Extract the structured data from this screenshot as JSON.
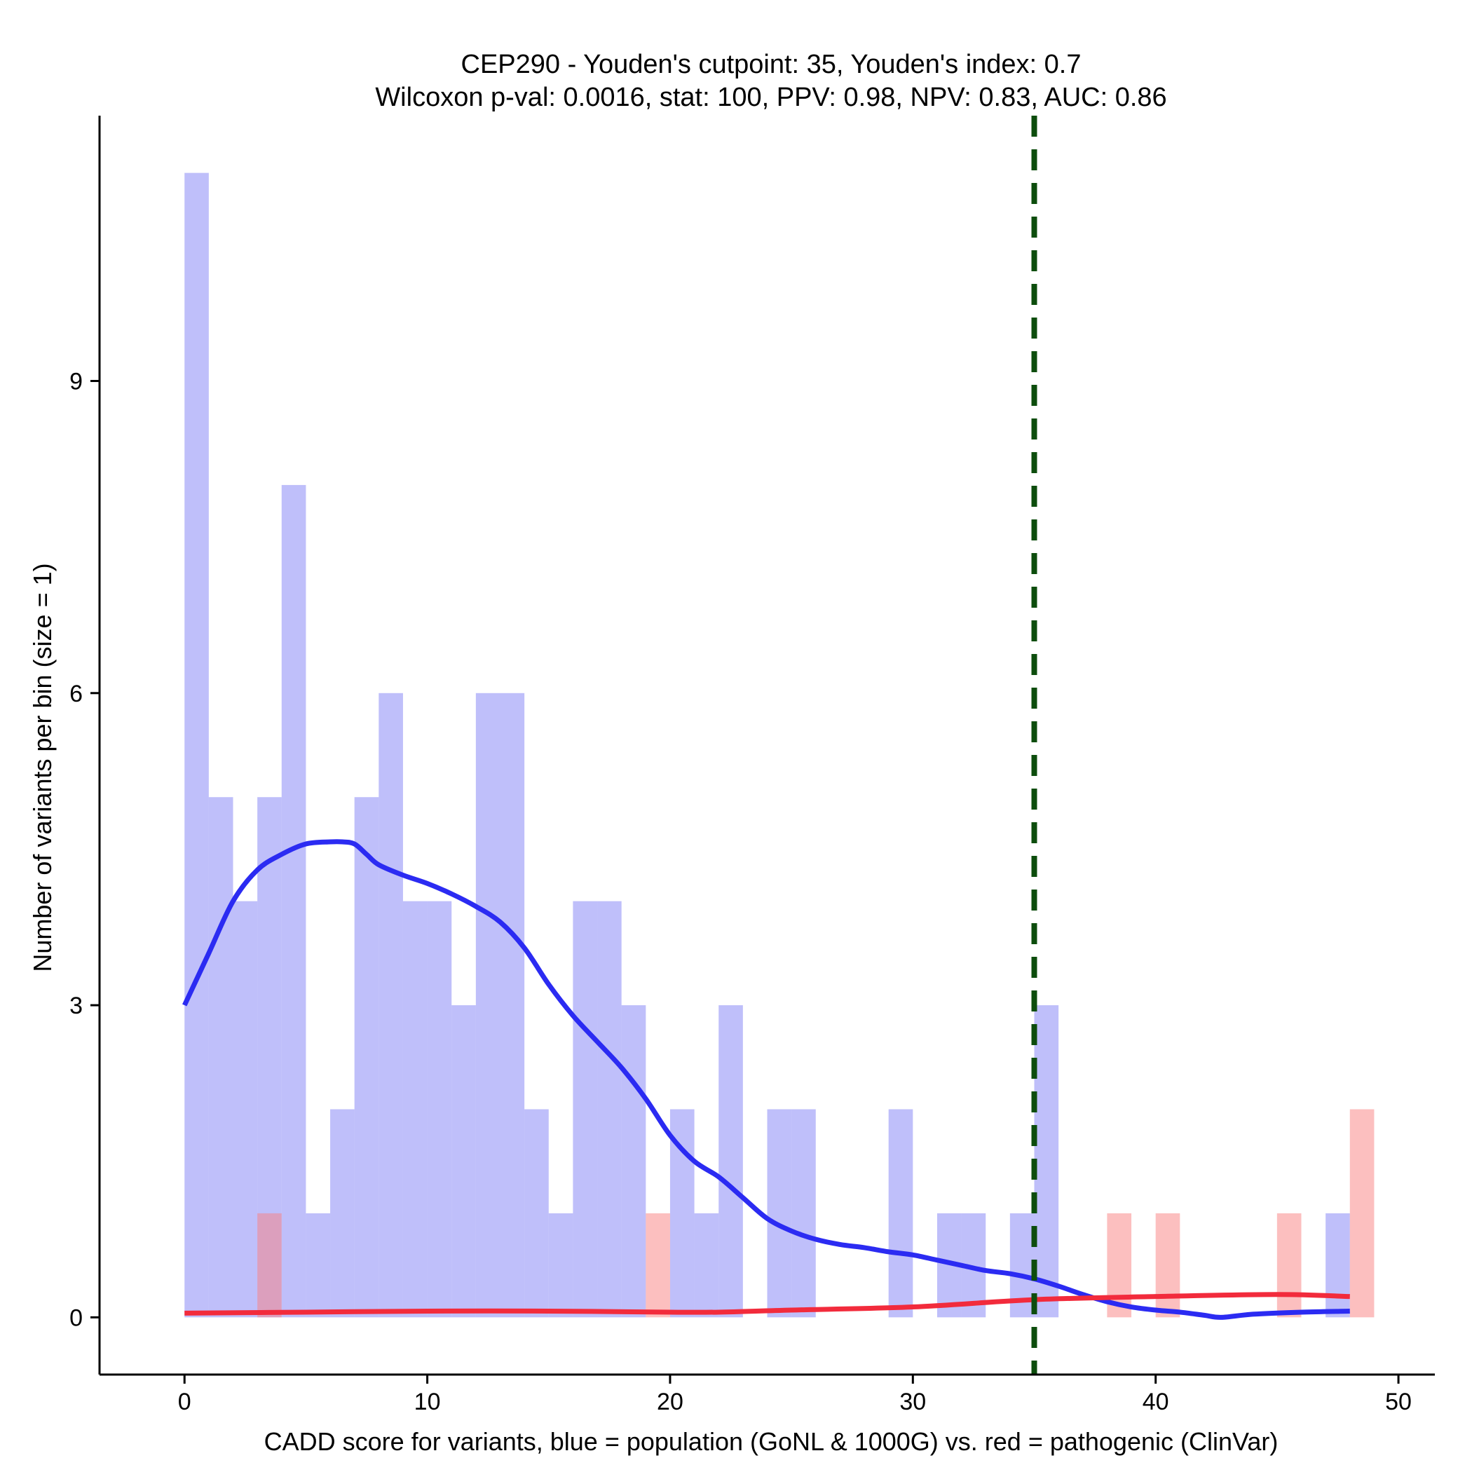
{
  "chart_data": {
    "type": "bar",
    "title": "CEP290 - Youden's cutpoint: 35, Youden's index: 0.7",
    "subtitle": "Wilcoxon p-val: 0.0016, stat: 100, PPV: 0.98, NPV: 0.83, AUC: 0.86",
    "xlabel": "CADD score for variants, blue = population (GoNL & 1000G) vs. red = pathogenic (ClinVar)",
    "ylabel": "Number of variants per bin (size = 1)",
    "xlim": [
      -3.5,
      51.5
    ],
    "ylim": [
      -0.55,
      11.55
    ],
    "x_ticks": [
      0,
      10,
      20,
      30,
      40,
      50
    ],
    "y_ticks": [
      0,
      3,
      6,
      9
    ],
    "bin_size": 1,
    "cutpoint": 35,
    "series": [
      {
        "name": "population (GoNL & 1000G)",
        "color": "#8080f5",
        "bins": [
          {
            "x0": 0,
            "count": 11
          },
          {
            "x0": 1,
            "count": 5
          },
          {
            "x0": 2,
            "count": 4
          },
          {
            "x0": 3,
            "count": 5
          },
          {
            "x0": 4,
            "count": 8
          },
          {
            "x0": 5,
            "count": 1
          },
          {
            "x0": 6,
            "count": 2
          },
          {
            "x0": 7,
            "count": 5
          },
          {
            "x0": 8,
            "count": 6
          },
          {
            "x0": 9,
            "count": 4
          },
          {
            "x0": 10,
            "count": 4
          },
          {
            "x0": 11,
            "count": 3
          },
          {
            "x0": 12,
            "count": 6
          },
          {
            "x0": 13,
            "count": 6
          },
          {
            "x0": 14,
            "count": 2
          },
          {
            "x0": 15,
            "count": 1
          },
          {
            "x0": 16,
            "count": 4
          },
          {
            "x0": 17,
            "count": 4
          },
          {
            "x0": 18,
            "count": 3
          },
          {
            "x0": 20,
            "count": 2
          },
          {
            "x0": 21,
            "count": 1
          },
          {
            "x0": 22,
            "count": 3
          },
          {
            "x0": 24,
            "count": 2
          },
          {
            "x0": 25,
            "count": 2
          },
          {
            "x0": 29,
            "count": 2
          },
          {
            "x0": 31,
            "count": 1
          },
          {
            "x0": 32,
            "count": 1
          },
          {
            "x0": 34,
            "count": 1
          },
          {
            "x0": 35,
            "count": 3
          },
          {
            "x0": 47,
            "count": 1
          }
        ]
      },
      {
        "name": "pathogenic (ClinVar)",
        "color": "#fa8080",
        "bins": [
          {
            "x0": 3,
            "count": 1
          },
          {
            "x0": 19,
            "count": 1
          },
          {
            "x0": 38,
            "count": 1
          },
          {
            "x0": 40,
            "count": 1
          },
          {
            "x0": 45,
            "count": 1
          },
          {
            "x0": 48,
            "count": 2
          }
        ]
      }
    ],
    "density_curves": [
      {
        "name": "population density",
        "color": "#2b2bf2",
        "x": [
          0,
          1,
          2,
          3,
          4,
          5,
          6,
          6.5,
          7,
          7.5,
          8,
          9,
          10,
          11,
          12,
          13,
          14,
          15,
          16,
          17,
          18,
          19,
          20,
          21,
          22,
          23,
          24,
          25,
          26,
          27,
          28,
          29,
          30,
          31,
          32,
          33,
          34,
          35,
          36,
          37,
          38,
          39,
          40,
          41,
          42,
          42.7,
          44,
          46,
          48
        ],
        "y": [
          3.0,
          3.5,
          4.0,
          4.3,
          4.45,
          4.55,
          4.57,
          4.57,
          4.55,
          4.45,
          4.35,
          4.25,
          4.17,
          4.07,
          3.95,
          3.8,
          3.55,
          3.2,
          2.9,
          2.65,
          2.4,
          2.1,
          1.75,
          1.5,
          1.35,
          1.15,
          0.95,
          0.83,
          0.75,
          0.7,
          0.67,
          0.63,
          0.6,
          0.55,
          0.5,
          0.45,
          0.42,
          0.37,
          0.3,
          0.22,
          0.15,
          0.1,
          0.07,
          0.05,
          0.02,
          0.0,
          0.03,
          0.05,
          0.06
        ]
      },
      {
        "name": "pathogenic density",
        "color": "#f22b3c",
        "x": [
          0,
          5,
          10,
          15,
          20,
          22,
          25,
          30,
          35,
          40,
          45,
          48
        ],
        "y": [
          0.04,
          0.05,
          0.06,
          0.06,
          0.05,
          0.05,
          0.07,
          0.1,
          0.17,
          0.2,
          0.22,
          0.2
        ]
      }
    ]
  }
}
